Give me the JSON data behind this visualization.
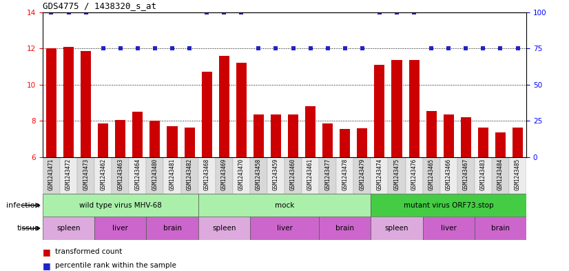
{
  "title": "GDS4775 / 1438320_s_at",
  "samples": [
    "GSM1243471",
    "GSM1243472",
    "GSM1243473",
    "GSM1243462",
    "GSM1243463",
    "GSM1243464",
    "GSM1243480",
    "GSM1243481",
    "GSM1243482",
    "GSM1243468",
    "GSM1243469",
    "GSM1243470",
    "GSM1243458",
    "GSM1243459",
    "GSM1243460",
    "GSM1243461",
    "GSM1243477",
    "GSM1243478",
    "GSM1243479",
    "GSM1243474",
    "GSM1243475",
    "GSM1243476",
    "GSM1243465",
    "GSM1243466",
    "GSM1243467",
    "GSM1243483",
    "GSM1243484",
    "GSM1243485"
  ],
  "bar_values": [
    12.0,
    12.1,
    11.85,
    7.85,
    8.05,
    8.5,
    8.0,
    7.7,
    7.65,
    10.7,
    11.6,
    11.2,
    8.35,
    8.35,
    8.35,
    8.8,
    7.85,
    7.55,
    7.6,
    11.1,
    11.35,
    11.35,
    8.55,
    8.35,
    8.2,
    7.65,
    7.35,
    7.65
  ],
  "dot_values_pct": [
    100,
    100,
    100,
    75,
    75,
    75,
    75,
    75,
    75,
    100,
    100,
    100,
    75,
    75,
    75,
    75,
    75,
    75,
    75,
    100,
    100,
    100,
    75,
    75,
    75,
    75,
    75,
    75
  ],
  "ylim_left": [
    6,
    14
  ],
  "ylim_right": [
    0,
    100
  ],
  "yticks_left": [
    6,
    8,
    10,
    12,
    14
  ],
  "yticks_right": [
    0,
    25,
    50,
    75,
    100
  ],
  "bar_color": "#CC0000",
  "dot_color": "#2222CC",
  "chart_bg": "#ffffff",
  "label_bg": "#d8d8d8",
  "infection_groups": [
    {
      "label": "wild type virus MHV-68",
      "start": 0,
      "end": 9,
      "color": "#aaf0aa"
    },
    {
      "label": "mock",
      "start": 9,
      "end": 19,
      "color": "#aaf0aa"
    },
    {
      "label": "mutant virus ORF73.stop",
      "start": 19,
      "end": 28,
      "color": "#44cc44"
    }
  ],
  "tissue_groups": [
    {
      "label": "spleen",
      "start": 0,
      "end": 3,
      "color": "#ddaadd"
    },
    {
      "label": "liver",
      "start": 3,
      "end": 6,
      "color": "#cc66cc"
    },
    {
      "label": "brain",
      "start": 6,
      "end": 9,
      "color": "#cc66cc"
    },
    {
      "label": "spleen",
      "start": 9,
      "end": 12,
      "color": "#ddaadd"
    },
    {
      "label": "liver",
      "start": 12,
      "end": 16,
      "color": "#cc66cc"
    },
    {
      "label": "brain",
      "start": 16,
      "end": 19,
      "color": "#cc66cc"
    },
    {
      "label": "spleen",
      "start": 19,
      "end": 22,
      "color": "#ddaadd"
    },
    {
      "label": "liver",
      "start": 22,
      "end": 25,
      "color": "#cc66cc"
    },
    {
      "label": "brain",
      "start": 25,
      "end": 28,
      "color": "#cc66cc"
    }
  ],
  "infection_label": "infection",
  "tissue_label": "tissue",
  "legend_bar": "transformed count",
  "legend_dot": "percentile rank within the sample",
  "title_fontsize": 9
}
